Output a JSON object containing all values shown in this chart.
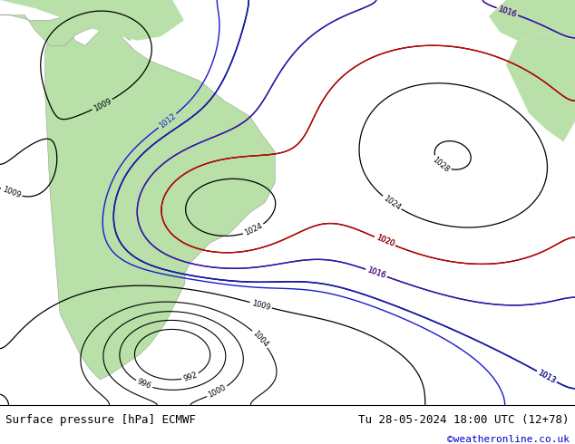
{
  "label_left": "Surface pressure [hPa] ECMWF",
  "label_right": "Tu 28-05-2024 18:00 UTC (12+78)",
  "label_credit": "©weatheronline.co.uk",
  "bg_color": "#c8d8e8",
  "land_color": "#b8e0a8",
  "credit_color": "#0000cc",
  "label_font_size": 9,
  "fig_width": 6.34,
  "fig_height": 4.9,
  "dpi": 100
}
